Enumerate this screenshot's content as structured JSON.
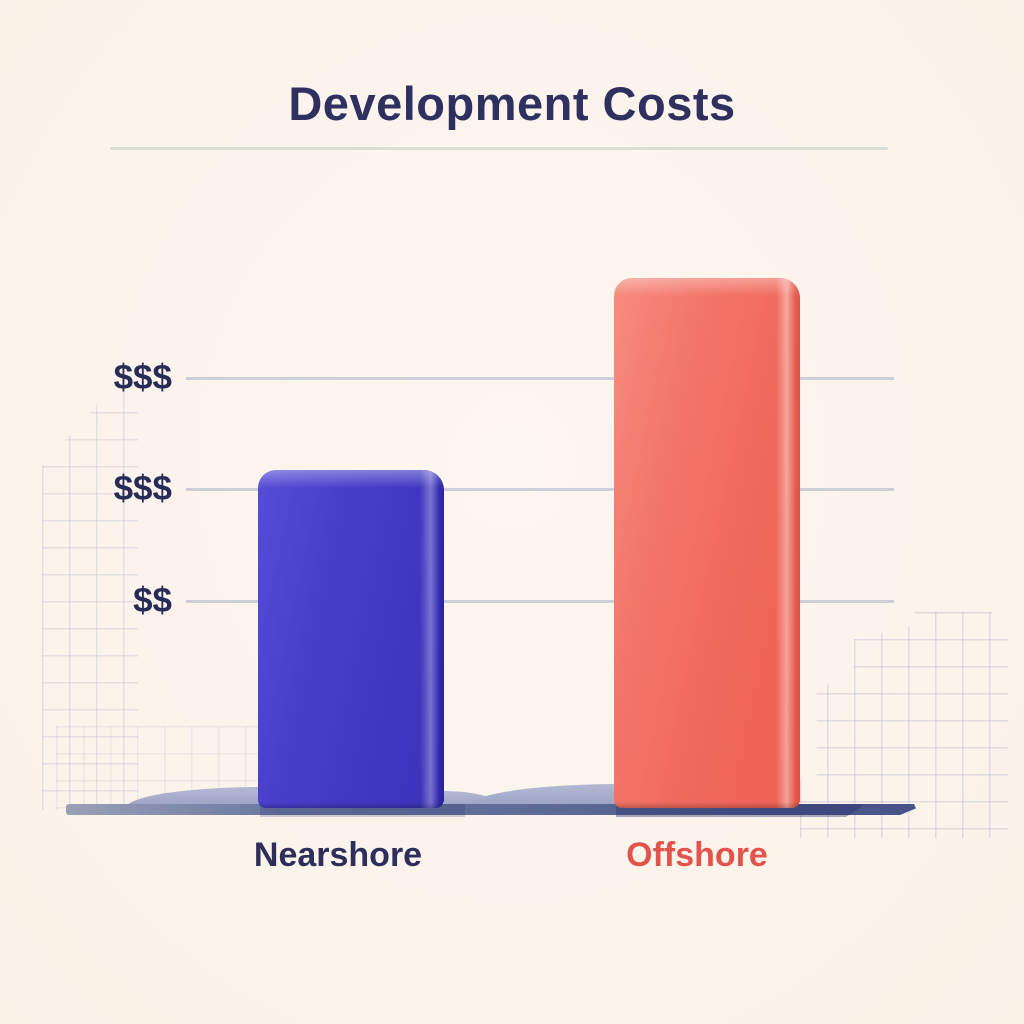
{
  "header": {
    "title": "Development Costs"
  },
  "chart_data": {
    "type": "bar",
    "title": "Development Costs",
    "categories": [
      "Nearshore",
      "Offshore"
    ],
    "values": [
      3.03,
      4.75
    ],
    "value_unit": "relative cost level (qualitative dollar-sign scale, no numeric axis shown)",
    "y_ticks": [
      {
        "level": 3.86,
        "label": "$$$"
      },
      {
        "level": 2.86,
        "label": "$$$"
      },
      {
        "level": 1.86,
        "label": "$$"
      }
    ],
    "xlabel": "",
    "ylabel": "",
    "grid": "horizontal gridlines on",
    "legend": "none",
    "series": [
      {
        "name": "Nearshore",
        "value": 3.03,
        "bar_color": "#4239c5",
        "label_color": "#2c2f5c"
      },
      {
        "name": "Offshore",
        "value": 4.75,
        "bar_color": "#f0695c",
        "label_color": "#e2544b"
      }
    ]
  },
  "colors": {
    "background": "#fcf3ea",
    "title_text": "#2e3160",
    "tick_text": "#272b58",
    "gridline": "#cdd0db",
    "baseline": "#5d6b96",
    "divider": "#dddcd9",
    "nearshore_bar": "#4239c5",
    "offshore_bar": "#f0695c",
    "nearshore_label": "#2c2f5c",
    "offshore_label": "#e2544b",
    "decor_grid": "#7482b9",
    "shadow_hill": "#a9aecb"
  }
}
